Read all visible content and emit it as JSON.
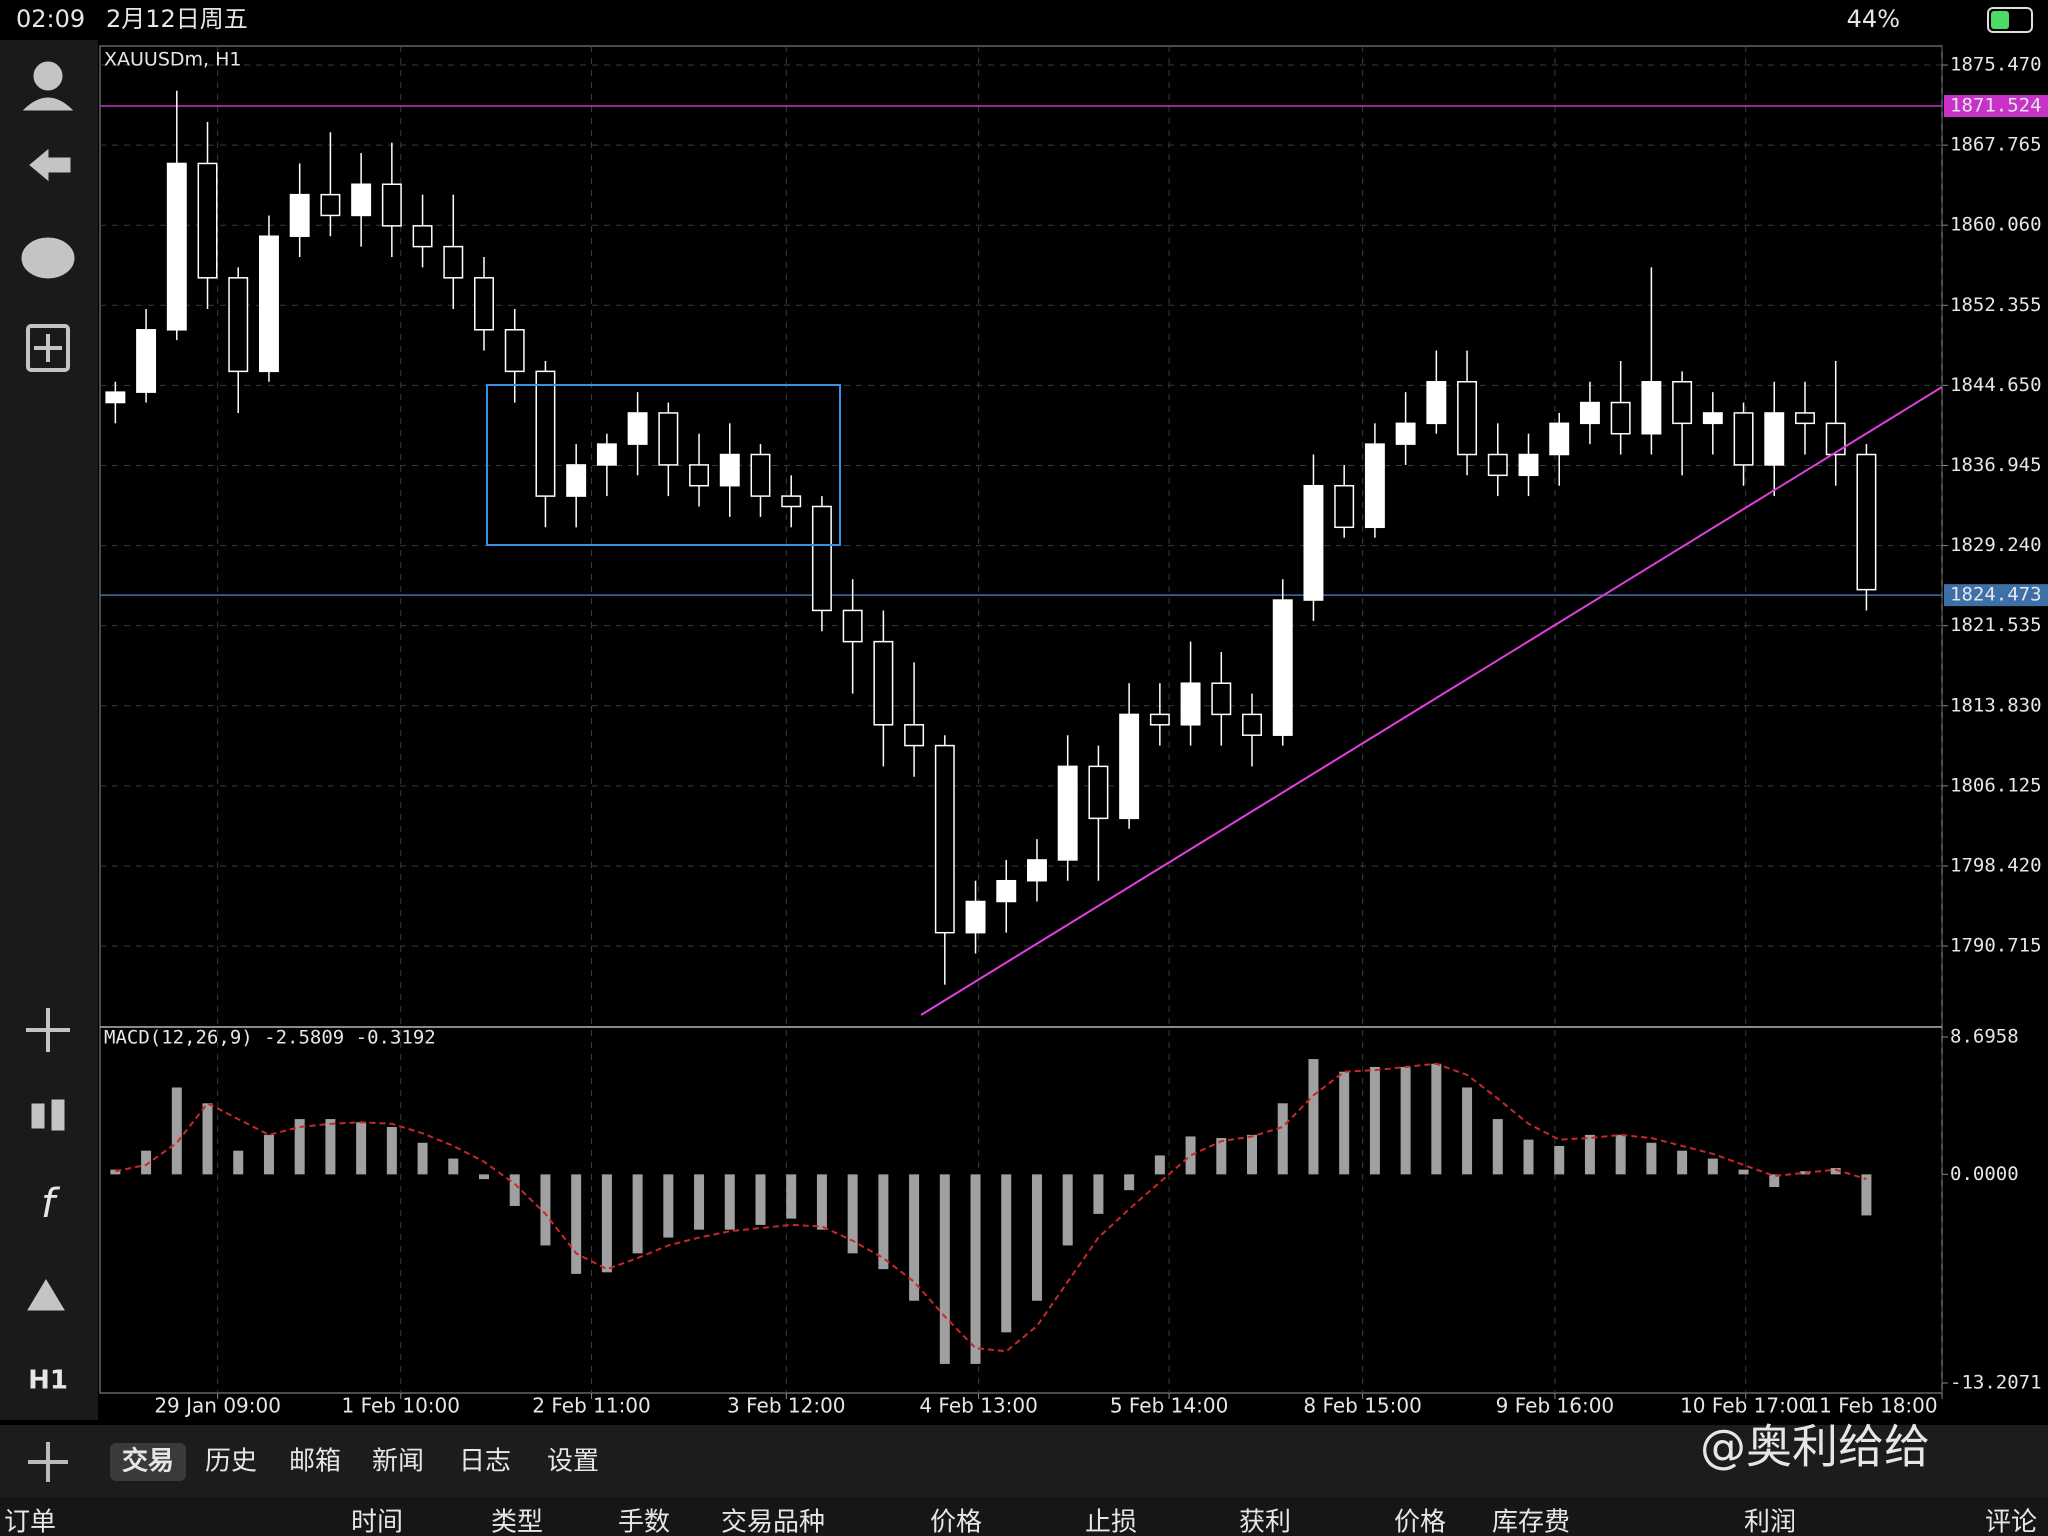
{
  "status_bar": {
    "time": "02:09",
    "date": "2月12日周五",
    "battery": "44%"
  },
  "toolbar": {
    "timeframe": "H1"
  },
  "chart_data": [
    {
      "type": "candlestick",
      "title": "XAUUSDm, H1",
      "x": [
        0,
        1,
        2,
        3,
        4,
        5,
        6,
        7,
        8,
        9,
        10,
        11,
        12,
        13,
        14,
        15,
        16,
        17,
        18,
        19,
        20,
        21,
        22,
        23,
        24,
        25,
        26,
        27,
        28,
        29,
        30,
        31,
        32,
        33,
        34,
        35,
        36,
        37,
        38,
        39,
        40,
        41,
        42,
        43,
        44,
        45,
        46,
        47,
        48,
        49,
        50,
        51,
        52,
        53,
        54,
        55,
        56,
        57
      ],
      "open": [
        1843,
        1844,
        1850,
        1866,
        1855,
        1846,
        1859,
        1863,
        1861,
        1864,
        1860,
        1858,
        1855,
        1850,
        1846,
        1834,
        1837,
        1839,
        1842,
        1837,
        1835,
        1838,
        1834,
        1833,
        1823,
        1820,
        1812,
        1810,
        1792,
        1795,
        1797,
        1799,
        1808,
        1803,
        1813,
        1812,
        1816,
        1813,
        1811,
        1824,
        1835,
        1831,
        1839,
        1841,
        1845,
        1838,
        1836,
        1838,
        1841,
        1843,
        1840,
        1845,
        1841,
        1842,
        1837,
        1842,
        1841,
        1838
      ],
      "high": [
        1845,
        1852,
        1873,
        1870,
        1856,
        1861,
        1866,
        1869,
        1867,
        1868,
        1863,
        1863,
        1857,
        1852,
        1847,
        1839,
        1840,
        1844,
        1843,
        1840,
        1841,
        1839,
        1836,
        1834,
        1826,
        1823,
        1818,
        1811,
        1797,
        1799,
        1801,
        1811,
        1810,
        1816,
        1816,
        1820,
        1819,
        1815,
        1826,
        1838,
        1837,
        1841,
        1844,
        1848,
        1848,
        1841,
        1840,
        1842,
        1845,
        1847,
        1856,
        1846,
        1844,
        1843,
        1845,
        1845,
        1847,
        1839
      ],
      "low": [
        1841,
        1843,
        1849,
        1852,
        1842,
        1845,
        1857,
        1859,
        1858,
        1857,
        1856,
        1852,
        1848,
        1843,
        1831,
        1831,
        1834,
        1836,
        1834,
        1833,
        1832,
        1832,
        1831,
        1821,
        1815,
        1808,
        1807,
        1787,
        1790,
        1792,
        1795,
        1797,
        1797,
        1802,
        1810,
        1810,
        1810,
        1808,
        1810,
        1822,
        1830,
        1830,
        1837,
        1840,
        1836,
        1834,
        1834,
        1835,
        1839,
        1838,
        1838,
        1836,
        1838,
        1835,
        1834,
        1838,
        1835,
        1823
      ],
      "close": [
        1844,
        1850,
        1866,
        1855,
        1846,
        1859,
        1863,
        1861,
        1864,
        1860,
        1858,
        1855,
        1850,
        1846,
        1834,
        1837,
        1839,
        1842,
        1837,
        1835,
        1838,
        1834,
        1833,
        1823,
        1820,
        1812,
        1810,
        1792,
        1795,
        1797,
        1799,
        1808,
        1803,
        1813,
        1812,
        1816,
        1813,
        1811,
        1824,
        1835,
        1831,
        1839,
        1841,
        1845,
        1838,
        1836,
        1838,
        1841,
        1843,
        1840,
        1845,
        1841,
        1842,
        1837,
        1842,
        1841,
        1838,
        1825
      ],
      "up_color": "#ffffff",
      "down_color": "#000000",
      "wick_color": "#ffffff",
      "xlim": [
        -0.5,
        59.46
      ],
      "xticks": [
        {
          "value": 3.33,
          "label": "29 Jan 09:00"
        },
        {
          "value": 9.29,
          "label": "1 Feb 10:00"
        },
        {
          "value": 15.5,
          "label": "2 Feb 11:00"
        },
        {
          "value": 21.84,
          "label": "3 Feb 12:00"
        },
        {
          "value": 28.1,
          "label": "4 Feb 13:00"
        },
        {
          "value": 34.3,
          "label": "5 Feb 14:00"
        },
        {
          "value": 40.6,
          "label": "8 Feb 15:00"
        },
        {
          "value": 46.86,
          "label": "9 Feb 16:00"
        },
        {
          "value": 53.07,
          "label": "10 Feb 17:00"
        },
        {
          "value": 59.46,
          "label": "11 Feb 18:00"
        }
      ],
      "ylim": [
        1783.12,
        1877.3
      ],
      "yticks": [
        {
          "value": 1875.47,
          "label": "1875.470"
        },
        {
          "value": 1867.765,
          "label": "1867.765"
        },
        {
          "value": 1860.06,
          "label": "1860.060"
        },
        {
          "value": 1852.355,
          "label": "1852.355"
        },
        {
          "value": 1844.65,
          "label": "1844.650"
        },
        {
          "value": 1836.945,
          "label": "1836.945"
        },
        {
          "value": 1829.24,
          "label": "1829.240"
        },
        {
          "value": 1821.535,
          "label": "1821.535"
        },
        {
          "value": 1813.83,
          "label": "1813.830"
        },
        {
          "value": 1806.125,
          "label": "1806.125"
        },
        {
          "value": 1798.42,
          "label": "1798.420"
        },
        {
          "value": 1790.715,
          "label": "1790.715"
        }
      ],
      "grid": true,
      "levels": [
        {
          "value": 1871.524,
          "color": "#c832c8"
        },
        {
          "value": 1824.473,
          "color": "#3d6fa8"
        }
      ]
    },
    {
      "type": "macd",
      "title": "MACD(12,26,9) -2.5809 -0.3192",
      "xlim": [
        -0.5,
        59.46
      ],
      "ylim": [
        -13.2071,
        8.6958
      ],
      "yticks": [
        {
          "value": 8.6958,
          "label": "8.6958"
        },
        {
          "value": 0,
          "label": "0.0000"
        },
        {
          "value": -13.2071,
          "label": "-13.2071"
        }
      ],
      "series": [
        {
          "type": "bar",
          "color": "#a0a0a0",
          "values": [
            0.3,
            1.5,
            5.5,
            4.5,
            1.5,
            2.5,
            3.5,
            3.5,
            3.3,
            3.0,
            2.0,
            1.0,
            -0.3,
            -2.0,
            -4.5,
            -6.3,
            -6.2,
            -5.0,
            -4.0,
            -3.5,
            -3.5,
            -3.2,
            -2.8,
            -3.5,
            -5.0,
            -6.0,
            -8.0,
            -12.0,
            -12.0,
            -10.0,
            -8.0,
            -4.5,
            -2.5,
            -1.0,
            1.2,
            2.4,
            2.3,
            2.5,
            4.5,
            7.3,
            6.5,
            6.8,
            6.8,
            7.0,
            5.5,
            3.5,
            2.2,
            1.8,
            2.5,
            2.5,
            2.0,
            1.5,
            1.0,
            0.3,
            -0.8,
            0.2,
            0.4,
            -2.6
          ]
        },
        {
          "type": "line",
          "color": "#c82828",
          "values": [
            0.2,
            0.6,
            2.0,
            4.5,
            3.5,
            2.5,
            3.0,
            3.2,
            3.3,
            3.2,
            2.6,
            1.8,
            0.8,
            -0.6,
            -2.5,
            -5.0,
            -6.0,
            -5.3,
            -4.5,
            -4.0,
            -3.6,
            -3.4,
            -3.2,
            -3.3,
            -4.2,
            -5.3,
            -6.8,
            -9.0,
            -11.0,
            -11.2,
            -9.6,
            -6.8,
            -4.0,
            -2.2,
            -0.5,
            1.2,
            2.1,
            2.4,
            3.0,
            5.0,
            6.5,
            6.6,
            6.8,
            7.0,
            6.3,
            4.8,
            3.2,
            2.2,
            2.3,
            2.5,
            2.3,
            1.8,
            1.3,
            0.6,
            -0.1,
            0.1,
            0.3,
            -0.3
          ]
        }
      ]
    }
  ],
  "tabs": [
    "交易",
    "历史",
    "邮箱",
    "新闻",
    "日志",
    "设置"
  ],
  "selected_tab": 0,
  "columns": [
    "订单",
    "时间",
    "类型",
    "手数",
    "交易品种",
    "价格",
    "止损",
    "获利",
    "价格",
    "库存费",
    "利润",
    "评论"
  ],
  "watermark": "@奥利给给"
}
